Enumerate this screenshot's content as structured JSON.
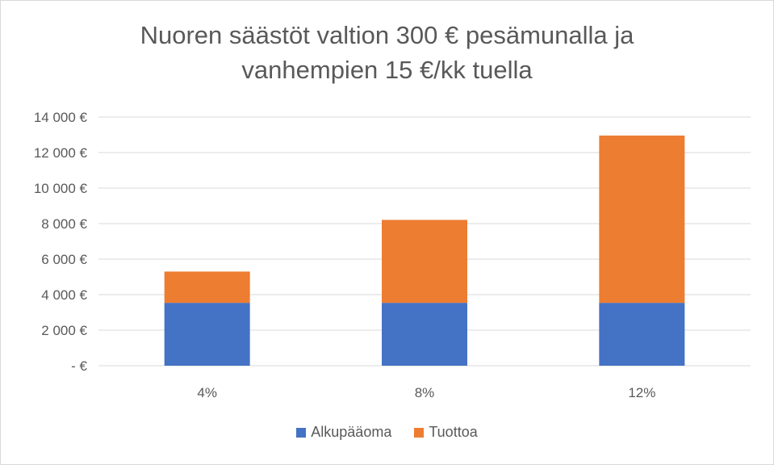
{
  "chart_data": {
    "type": "bar",
    "stacked": true,
    "title_lines": [
      "Nuoren säästöt valtion 300 € pesämunalla ja",
      "vanhempien 15 €/kk tuella"
    ],
    "categories": [
      "4%",
      "8%",
      "12%"
    ],
    "series": [
      {
        "name": "Alkupääoma",
        "color": "#4472c4",
        "values": [
          3540,
          3540,
          3540
        ]
      },
      {
        "name": "Tuottoa",
        "color": "#ed7d31",
        "values": [
          1760,
          4670,
          9420
        ]
      }
    ],
    "ylim": [
      0,
      14000
    ],
    "yticks": [
      0,
      2000,
      4000,
      6000,
      8000,
      10000,
      12000,
      14000
    ],
    "ytick_labels": [
      "-   €",
      "2 000 €",
      "4 000 €",
      "6 000 €",
      "8 000 €",
      "10 000 €",
      "12 000 €",
      "14 000 €"
    ],
    "grid": true,
    "legend_position": "bottom"
  }
}
